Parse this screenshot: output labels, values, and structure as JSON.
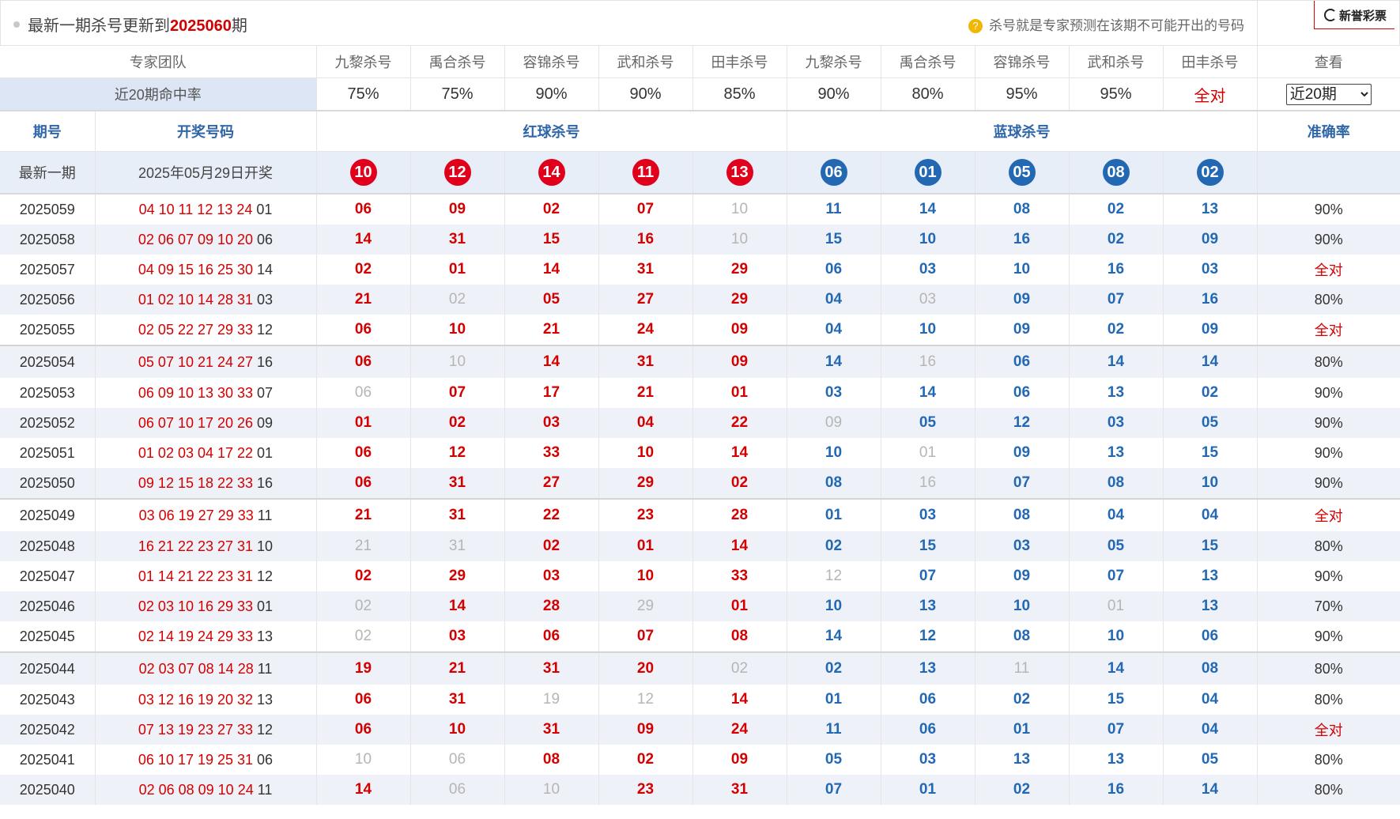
{
  "header": {
    "title_prefix": "最新一期杀号更新到",
    "title_period": "2025060",
    "title_suffix": "期",
    "tip_icon": "?",
    "tip": "杀号就是专家预测在该期不可能开出的号码",
    "brand": "新誉彩票"
  },
  "experts_row": {
    "label": "专家团队",
    "names": [
      "九黎杀号",
      "禹合杀号",
      "容锦杀号",
      "武和杀号",
      "田丰杀号",
      "九黎杀号",
      "禹合杀号",
      "容锦杀号",
      "武和杀号",
      "田丰杀号"
    ],
    "view_label": "查看"
  },
  "rates_row": {
    "label": "近20期命中率",
    "rates": [
      "75%",
      "75%",
      "90%",
      "90%",
      "85%",
      "90%",
      "80%",
      "95%",
      "95%",
      "全对"
    ],
    "select_value": "近20期"
  },
  "columns": {
    "period": "期号",
    "draw": "开奖号码",
    "red_kill": "红球杀号",
    "blue_kill": "蓝球杀号",
    "accuracy": "准确率"
  },
  "latest": {
    "label": "最新一期",
    "date": "2025年05月29日开奖",
    "red_balls": [
      "10",
      "12",
      "14",
      "11",
      "13"
    ],
    "blue_balls": [
      "06",
      "01",
      "05",
      "08",
      "02"
    ]
  },
  "rows": [
    {
      "period": "2025059",
      "red": "04 10 11 12 13 24",
      "blue": "01",
      "kills": [
        "06",
        "09",
        "02",
        "07",
        "10",
        "11",
        "14",
        "08",
        "02",
        "13"
      ],
      "miss": [
        4
      ],
      "acc": "90%"
    },
    {
      "period": "2025058",
      "red": "02 06 07 09 10 20",
      "blue": "06",
      "kills": [
        "14",
        "31",
        "15",
        "16",
        "10",
        "15",
        "10",
        "16",
        "02",
        "09"
      ],
      "miss": [
        4
      ],
      "acc": "90%"
    },
    {
      "period": "2025057",
      "red": "04 09 15 16 25 30",
      "blue": "14",
      "kills": [
        "02",
        "01",
        "14",
        "31",
        "29",
        "06",
        "03",
        "10",
        "16",
        "03"
      ],
      "miss": [],
      "acc": "全对"
    },
    {
      "period": "2025056",
      "red": "01 02 10 14 28 31",
      "blue": "03",
      "kills": [
        "21",
        "02",
        "05",
        "27",
        "29",
        "04",
        "03",
        "09",
        "07",
        "16"
      ],
      "miss": [
        1,
        6
      ],
      "acc": "80%"
    },
    {
      "period": "2025055",
      "red": "02 05 22 27 29 33",
      "blue": "12",
      "kills": [
        "06",
        "10",
        "21",
        "24",
        "09",
        "04",
        "10",
        "09",
        "02",
        "09"
      ],
      "miss": [],
      "acc": "全对"
    },
    {
      "period": "2025054",
      "red": "05 07 10 21 24 27",
      "blue": "16",
      "kills": [
        "06",
        "10",
        "14",
        "31",
        "09",
        "14",
        "16",
        "06",
        "14",
        "14"
      ],
      "miss": [
        1,
        6
      ],
      "acc": "80%"
    },
    {
      "period": "2025053",
      "red": "06 09 10 13 30 33",
      "blue": "07",
      "kills": [
        "06",
        "07",
        "17",
        "21",
        "01",
        "03",
        "14",
        "06",
        "13",
        "02"
      ],
      "miss": [
        0
      ],
      "acc": "90%"
    },
    {
      "period": "2025052",
      "red": "06 07 10 17 20 26",
      "blue": "09",
      "kills": [
        "01",
        "02",
        "03",
        "04",
        "22",
        "09",
        "05",
        "12",
        "03",
        "05"
      ],
      "miss": [
        5
      ],
      "acc": "90%"
    },
    {
      "period": "2025051",
      "red": "01 02 03 04 17 22",
      "blue": "01",
      "kills": [
        "06",
        "12",
        "33",
        "10",
        "14",
        "10",
        "01",
        "09",
        "13",
        "15"
      ],
      "miss": [
        6
      ],
      "acc": "90%"
    },
    {
      "period": "2025050",
      "red": "09 12 15 18 22 33",
      "blue": "16",
      "kills": [
        "06",
        "31",
        "27",
        "29",
        "02",
        "08",
        "16",
        "07",
        "08",
        "10"
      ],
      "miss": [
        6
      ],
      "acc": "90%"
    },
    {
      "period": "2025049",
      "red": "03 06 19 27 29 33",
      "blue": "11",
      "kills": [
        "21",
        "31",
        "22",
        "23",
        "28",
        "01",
        "03",
        "08",
        "04",
        "04"
      ],
      "miss": [],
      "acc": "全对"
    },
    {
      "period": "2025048",
      "red": "16 21 22 23 27 31",
      "blue": "10",
      "kills": [
        "21",
        "31",
        "02",
        "01",
        "14",
        "02",
        "15",
        "03",
        "05",
        "15"
      ],
      "miss": [
        0,
        1
      ],
      "acc": "80%"
    },
    {
      "period": "2025047",
      "red": "01 14 21 22 23 31",
      "blue": "12",
      "kills": [
        "02",
        "29",
        "03",
        "10",
        "33",
        "12",
        "07",
        "09",
        "07",
        "13"
      ],
      "miss": [
        5
      ],
      "acc": "90%"
    },
    {
      "period": "2025046",
      "red": "02 03 10 16 29 33",
      "blue": "01",
      "kills": [
        "02",
        "14",
        "28",
        "29",
        "01",
        "10",
        "13",
        "10",
        "01",
        "13"
      ],
      "miss": [
        0,
        3,
        8
      ],
      "acc": "70%"
    },
    {
      "period": "2025045",
      "red": "02 14 19 24 29 33",
      "blue": "13",
      "kills": [
        "02",
        "03",
        "06",
        "07",
        "08",
        "14",
        "12",
        "08",
        "10",
        "06"
      ],
      "miss": [
        0
      ],
      "acc": "90%"
    },
    {
      "period": "2025044",
      "red": "02 03 07 08 14 28",
      "blue": "11",
      "kills": [
        "19",
        "21",
        "31",
        "20",
        "02",
        "02",
        "13",
        "11",
        "14",
        "08"
      ],
      "miss": [
        4,
        7
      ],
      "acc": "80%"
    },
    {
      "period": "2025043",
      "red": "03 12 16 19 20 32",
      "blue": "13",
      "kills": [
        "06",
        "31",
        "19",
        "12",
        "14",
        "01",
        "06",
        "02",
        "15",
        "04"
      ],
      "miss": [
        2,
        3
      ],
      "acc": "80%"
    },
    {
      "period": "2025042",
      "red": "07 13 19 23 27 33",
      "blue": "12",
      "kills": [
        "06",
        "10",
        "31",
        "09",
        "24",
        "11",
        "06",
        "01",
        "07",
        "04"
      ],
      "miss": [],
      "acc": "全对"
    },
    {
      "period": "2025041",
      "red": "06 10 17 19 25 31",
      "blue": "06",
      "kills": [
        "10",
        "06",
        "08",
        "02",
        "09",
        "05",
        "03",
        "13",
        "13",
        "05"
      ],
      "miss": [
        0,
        1
      ],
      "acc": "80%"
    },
    {
      "period": "2025040",
      "red": "02 06 08 09 10 24",
      "blue": "11",
      "kills": [
        "14",
        "06",
        "10",
        "23",
        "31",
        "07",
        "01",
        "02",
        "16",
        "14"
      ],
      "miss": [
        1,
        2
      ],
      "acc": "80%"
    }
  ]
}
